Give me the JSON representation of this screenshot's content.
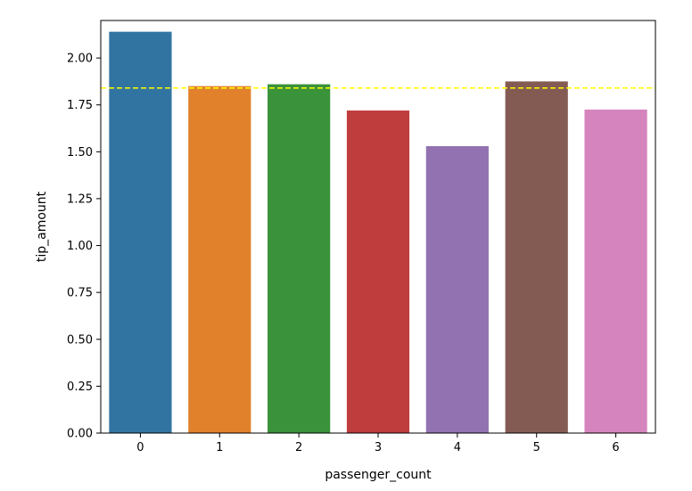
{
  "chart_data": {
    "type": "bar",
    "title": "",
    "xlabel": "passenger_count",
    "ylabel": "tip_amount",
    "categories": [
      "0",
      "1",
      "2",
      "3",
      "4",
      "5",
      "6"
    ],
    "values": [
      2.14,
      1.85,
      1.86,
      1.72,
      1.53,
      1.875,
      1.725
    ],
    "colors": [
      "#3274a1",
      "#e1812c",
      "#3a923a",
      "#c03d3e",
      "#9372b2",
      "#845b53",
      "#d684bd"
    ],
    "ylim": [
      0,
      2.2
    ],
    "yticks": [
      "0.00",
      "0.25",
      "0.50",
      "0.75",
      "1.00",
      "1.25",
      "1.50",
      "1.75",
      "2.00"
    ],
    "reference_line": {
      "y": 1.84,
      "color": "#ffff00",
      "style": "dashed"
    },
    "grid": false,
    "legend": "none"
  }
}
